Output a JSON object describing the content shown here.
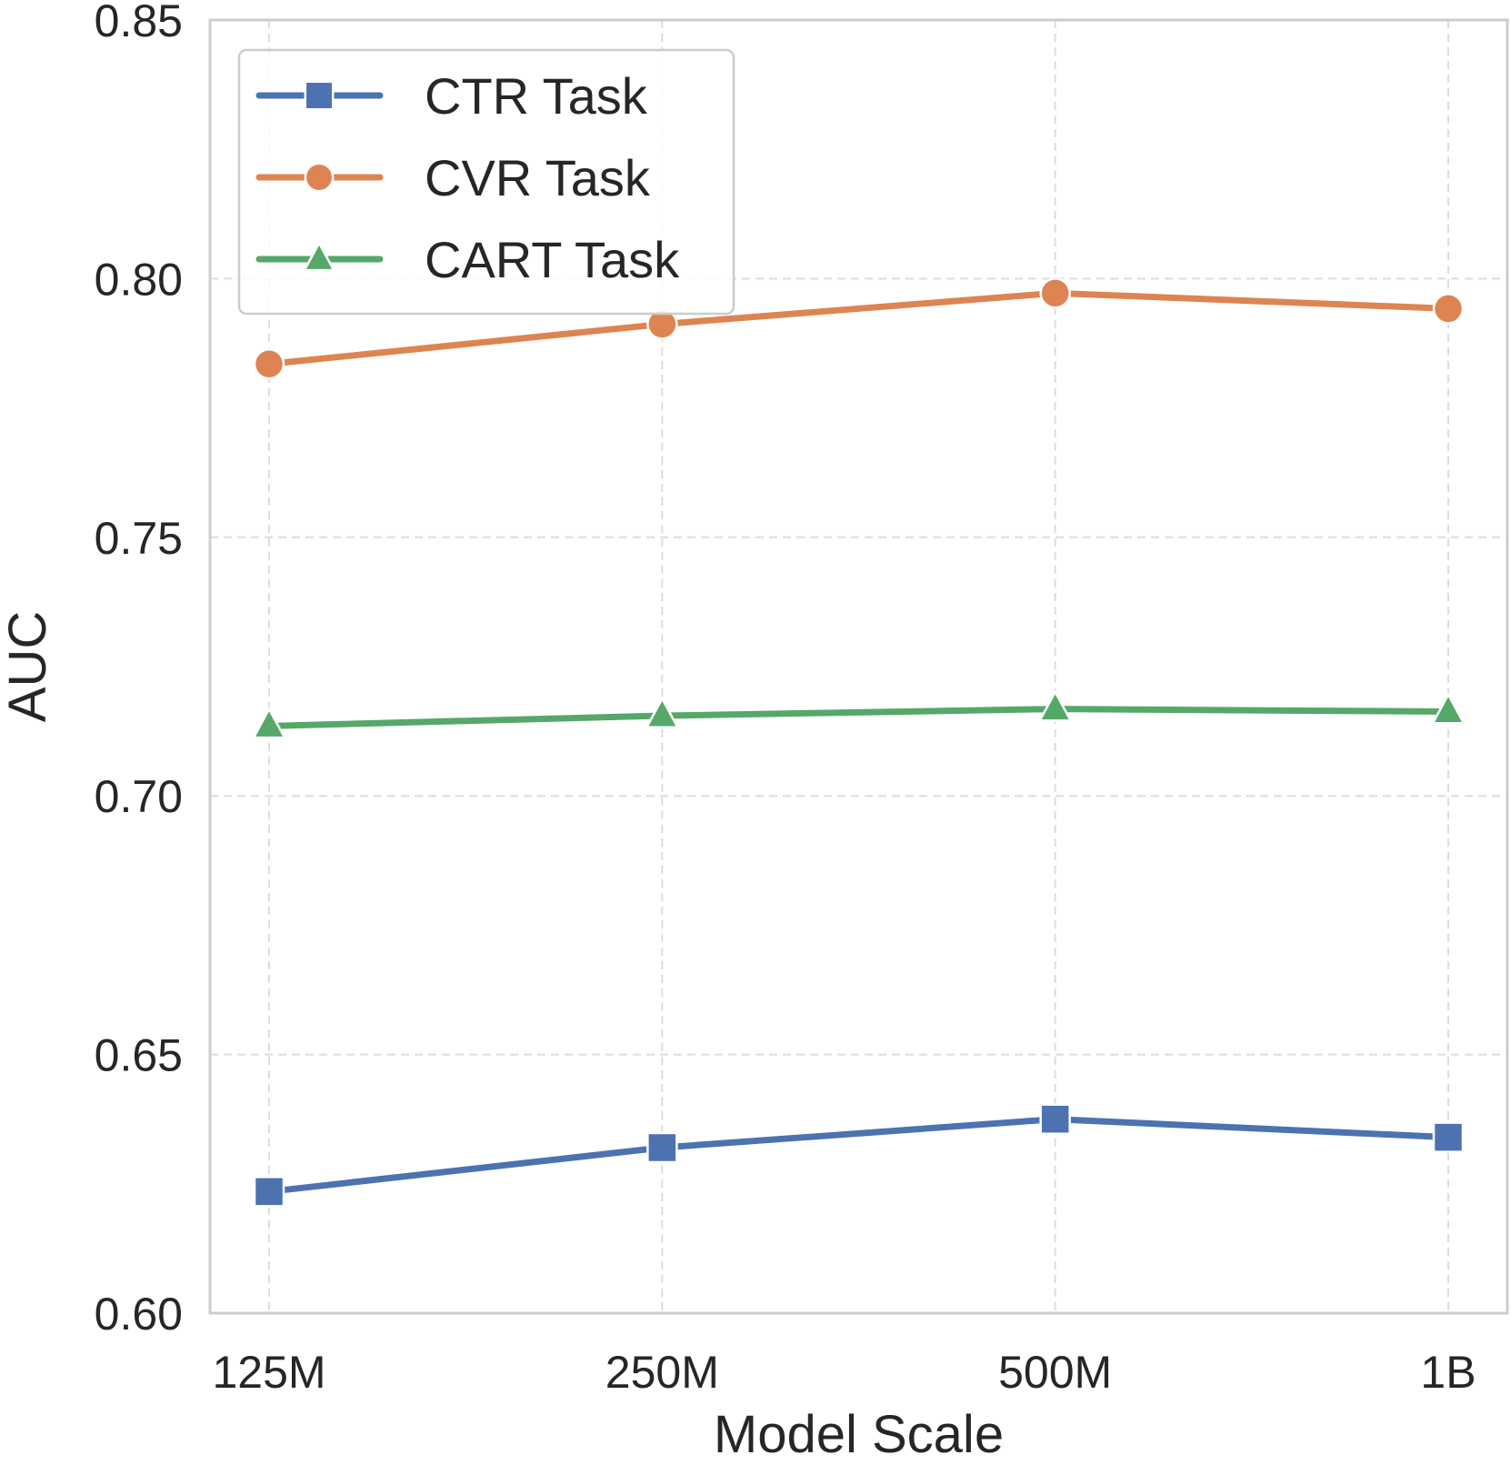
{
  "chart_data": {
    "type": "line",
    "title": "",
    "xlabel": "Model Scale",
    "ylabel": "AUC",
    "categories": [
      "125M",
      "250M",
      "500M",
      "1B"
    ],
    "ylim": [
      0.6,
      0.85
    ],
    "yticks": [
      "0.60",
      "0.65",
      "0.70",
      "0.75",
      "0.80",
      "0.85"
    ],
    "grid": true,
    "legend_position": "top-left",
    "series": [
      {
        "name": "CTR Task",
        "values": [
          0.6235,
          0.632,
          0.6375,
          0.634
        ],
        "color": "#4C72B0",
        "marker": "square"
      },
      {
        "name": "CVR Task",
        "values": [
          0.7835,
          0.7912,
          0.7972,
          0.7942
        ],
        "color": "#DD8452",
        "marker": "circle"
      },
      {
        "name": "CART Task",
        "values": [
          0.7135,
          0.7155,
          0.7168,
          0.7163
        ],
        "color": "#55A868",
        "marker": "triangle"
      }
    ]
  }
}
